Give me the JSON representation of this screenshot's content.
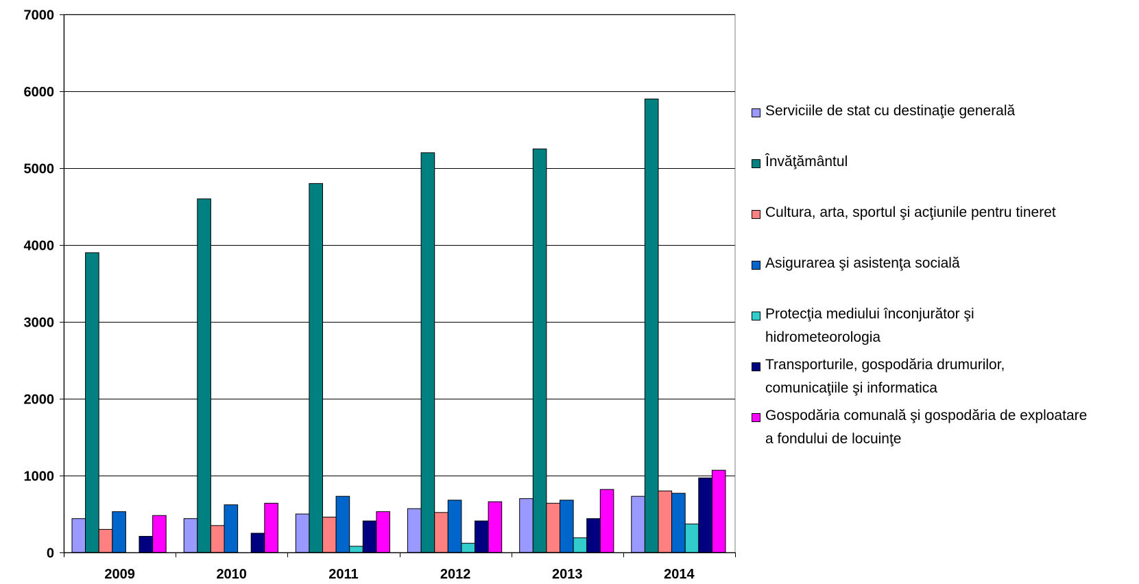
{
  "chart_data": {
    "type": "bar",
    "categories": [
      "2009",
      "2010",
      "2011",
      "2012",
      "2013",
      "2014"
    ],
    "ylim": [
      0,
      7000
    ],
    "yticks": [
      "0",
      "1000",
      "2000",
      "3000",
      "4000",
      "5000",
      "6000",
      "7000"
    ],
    "grid": true,
    "legend_position": "right",
    "series": [
      {
        "name": "Serviciile de stat cu destinaţie generală",
        "color": "#9999ff",
        "values": [
          440,
          440,
          500,
          570,
          700,
          730
        ]
      },
      {
        "name": "Învăţământul",
        "color": "#008080",
        "values": [
          3900,
          4600,
          4800,
          5200,
          5250,
          5900
        ]
      },
      {
        "name": "Cultura, arta, sportul şi acţiunile pentru tineret",
        "color": "#ff8080",
        "values": [
          300,
          350,
          460,
          520,
          640,
          800
        ]
      },
      {
        "name": "Asigurarea şi asistenţa socială",
        "color": "#0066cc",
        "values": [
          530,
          620,
          730,
          680,
          680,
          770
        ]
      },
      {
        "name": "Protecţia mediului înconjurător şi hidrometeorologia",
        "color": "#33cccc",
        "values": [
          0,
          0,
          80,
          120,
          190,
          370
        ]
      },
      {
        "name": "Transporturile, gospodăria drumurilor, comunicaţiile şi informatica",
        "color": "#000080",
        "values": [
          210,
          250,
          410,
          410,
          440,
          970
        ]
      },
      {
        "name": "Gospodăria comunală şi gospodăria de exploatare a fondului de locuinţe",
        "color": "#ff00ff",
        "values": [
          480,
          640,
          530,
          660,
          820,
          1070
        ]
      }
    ]
  },
  "legend": {
    "items": [
      {
        "label": "Serviciile de stat cu destinaţie generală",
        "color": "#9999ff"
      },
      {
        "label": "Învăţământul",
        "color": "#008080"
      },
      {
        "label": "Cultura, arta, sportul şi acţiunile pentru tineret",
        "color": "#ff8080"
      },
      {
        "label": "Asigurarea şi asistenţa socială",
        "color": "#0066cc"
      },
      {
        "label": "Protecţia mediului înconjurător şi hidrometeorologia",
        "color": "#33cccc"
      },
      {
        "label": "Transporturile, gospodăria drumurilor, comunicaţiile şi informatica",
        "color": "#000080"
      },
      {
        "label": "Gospodăria comunală şi gospodăria de exploatare a fondului de locuinţe",
        "color": "#ff00ff"
      }
    ]
  }
}
